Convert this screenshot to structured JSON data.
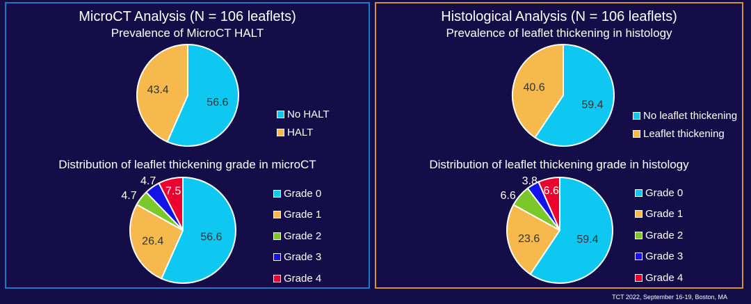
{
  "chart_data": [
    {
      "type": "pie",
      "panel": "left",
      "title": "MicroCT Analysis (N = 106 leaflets)",
      "subtitle": "Prevalence of MicroCT HALT",
      "categories": [
        "No HALT",
        "HALT"
      ],
      "values": [
        56.6,
        43.4
      ],
      "colors": [
        "#0fc8f2",
        "#f5b94e"
      ],
      "labels": [
        "56.6",
        "43.4"
      ]
    },
    {
      "type": "pie",
      "panel": "left",
      "subtitle": "Distribution of leaflet thickening grade in microCT",
      "categories": [
        "Grade 0",
        "Grade 1",
        "Grade 2",
        "Grade 3",
        "Grade 4"
      ],
      "values": [
        56.6,
        26.4,
        4.7,
        4.7,
        7.5
      ],
      "colors": [
        "#0fc8f2",
        "#f5b94e",
        "#7ac82a",
        "#1313e8",
        "#ec0030"
      ],
      "labels": [
        "56.6",
        "26.4",
        "4.7",
        "4.7",
        "7.5"
      ]
    },
    {
      "type": "pie",
      "panel": "right",
      "title": "Histological Analysis (N = 106 leaflets)",
      "subtitle": "Prevalence of leaflet thickening in histology",
      "categories": [
        "No leaflet thickening",
        "Leaflet thickening"
      ],
      "values": [
        59.4,
        40.6
      ],
      "colors": [
        "#0fc8f2",
        "#f5b94e"
      ],
      "labels": [
        "59.4",
        "40.6"
      ]
    },
    {
      "type": "pie",
      "panel": "right",
      "subtitle": "Distribution of leaflet thickening grade in histology",
      "categories": [
        "Grade 0",
        "Grade 1",
        "Grade 2",
        "Grade 3",
        "Grade 4"
      ],
      "values": [
        59.4,
        23.6,
        6.6,
        3.8,
        6.6
      ],
      "colors": [
        "#0fc8f2",
        "#f5b94e",
        "#7ac82a",
        "#1313e8",
        "#ec0030"
      ],
      "labels": [
        "59.4",
        "23.6",
        "6.6",
        "3.8",
        "6.6"
      ]
    }
  ],
  "footer": "TCT 2022, September 16-19, Boston, MA"
}
